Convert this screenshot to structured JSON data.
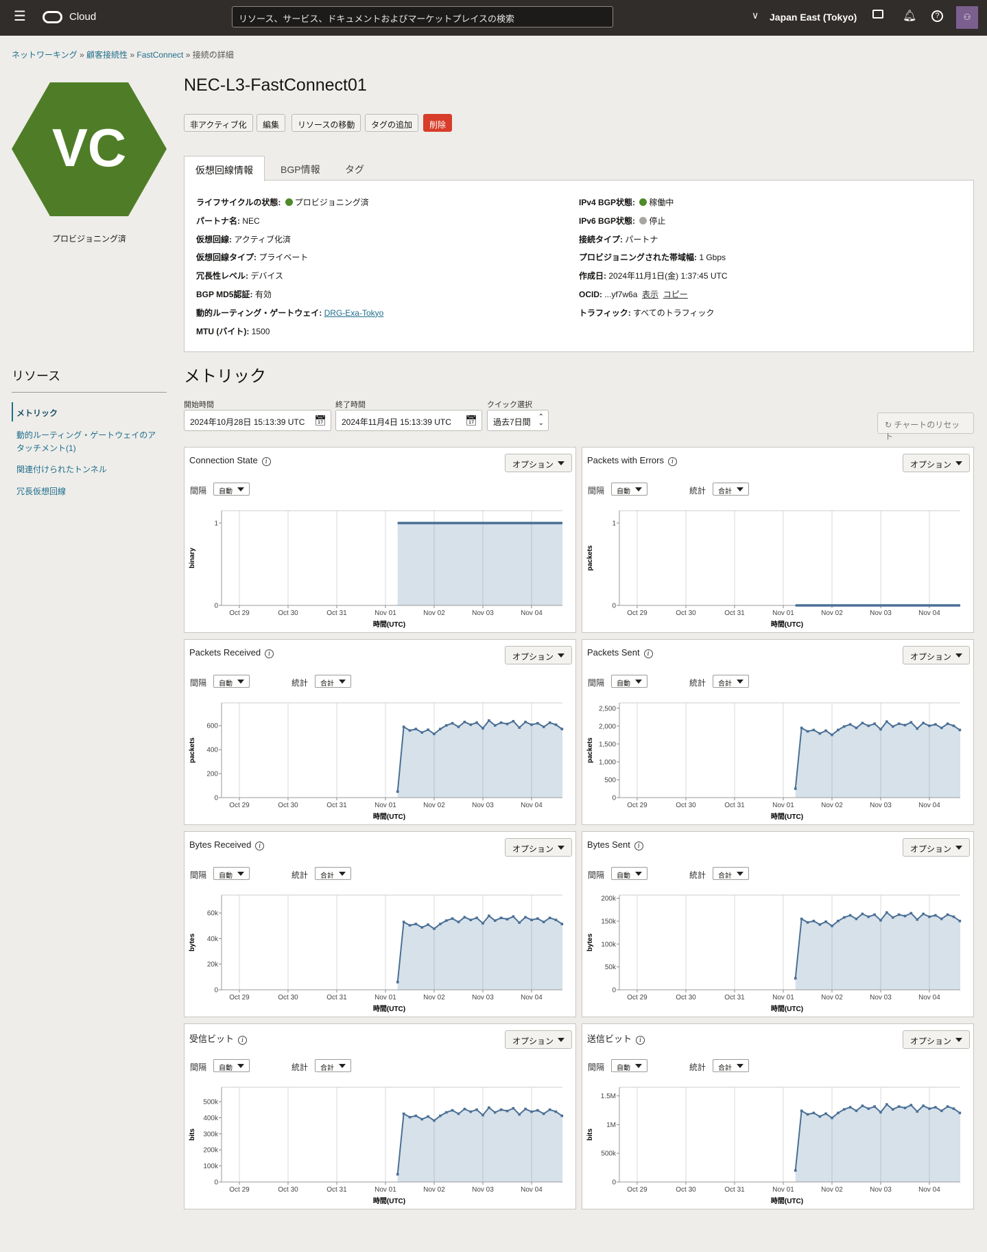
{
  "header": {
    "app": "Cloud",
    "search_placeholder": "リソース、サービス、ドキュメントおよびマーケットプレイスの検索",
    "region": "Japan East (Tokyo)",
    "icons": [
      "menu-icon",
      "oracle-logo-icon",
      "chevron-down-icon",
      "cloud-shell-icon",
      "bell-icon",
      "help-icon",
      "user-avatar-icon"
    ]
  },
  "breadcrumb": [
    "ネットワーキング",
    "顧客接続性",
    "FastConnect",
    "接続の詳細"
  ],
  "resource": {
    "icon_text": "VC",
    "status": "プロビジョニング済",
    "title": "NEC-L3-FastConnect01",
    "icon_color": "#4f7d27"
  },
  "actions": [
    "非アクティブ化",
    "編集",
    "リソースの移動",
    "タグの追加",
    "削除"
  ],
  "tabs": [
    "仮想回線情報",
    "BGP情報",
    "タグ"
  ],
  "info_left": [
    {
      "label": "ライフサイクルの状態:",
      "value": "プロビジョニング済",
      "dot": "#4f8a2b"
    },
    {
      "label": "パートナ名:",
      "value": "NEC"
    },
    {
      "label": "仮想回線:",
      "value": "アクティブ化済"
    },
    {
      "label": "仮想回線タイプ:",
      "value": "プライベート"
    },
    {
      "label": "冗長性レベル:",
      "value": "デバイス"
    },
    {
      "label": "BGP MD5認証:",
      "value": "有効"
    },
    {
      "label": "動的ルーティング・ゲートウェイ:",
      "value": "DRG-Exa-Tokyo",
      "link": true
    },
    {
      "label": "MTU (バイト):",
      "value": "1500"
    }
  ],
  "info_right": [
    {
      "label": "IPv4 BGP状態:",
      "value": "稼働中",
      "dot": "#4f8a2b"
    },
    {
      "label": "IPv6 BGP状態:",
      "value": "停止",
      "dot": "#a8a6a2"
    },
    {
      "label": "接続タイプ:",
      "value": "パートナ"
    },
    {
      "label": "プロビジョニングされた帯域幅:",
      "value": "1 Gbps"
    },
    {
      "label": "作成日:",
      "value": "2024年11月1日(金) 1:37:45 UTC"
    },
    {
      "label": "OCID:",
      "value": "...yf7w6a",
      "links": [
        "表示",
        "コピー"
      ]
    },
    {
      "label": "トラフィック:",
      "value": "すべてのトラフィック"
    }
  ],
  "sidebar": {
    "title": "リソース",
    "items": [
      "メトリック",
      "動的ルーティング・ゲートウェイのア",
      "タッチメント(1)",
      "関連付けられたトンネル",
      "冗長仮想回線"
    ]
  },
  "metrics": {
    "title": "メトリック",
    "start_label": "開始時間",
    "start": "2024年10月28日 15:13:39 UTC",
    "end_label": "終了時間",
    "end": "2024年11月4日 15:13:39 UTC",
    "quick_label": "クイック選択",
    "quick": "過去7日間",
    "reset": "チャートのリセット",
    "options": "オプション",
    "interval_label": "間隔",
    "interval": "自動",
    "stat_label": "統計",
    "stat": "合計"
  },
  "chart_data": [
    {
      "type": "area",
      "title": "Connection State",
      "ylabel": "binary",
      "xlabel": "時間(UTC)",
      "yticks": [
        0,
        1
      ],
      "ylim": [
        0,
        1.15
      ],
      "stat": false,
      "xlim": [
        "2024-10-28 15:13",
        "2024-11-04 15:13"
      ],
      "xticks": [
        "Oct 29",
        "Oct 30",
        "Oct 31",
        "Nov 01",
        "Nov 02",
        "Nov 03",
        "Nov 04"
      ],
      "x_start": "2024-11-01 06:00",
      "interval": "3h",
      "values": [
        1,
        1,
        1,
        1,
        1,
        1,
        1,
        1,
        1,
        1,
        1,
        1,
        1,
        1,
        1,
        1,
        1,
        1,
        1,
        1,
        1,
        1,
        1,
        1,
        1,
        1,
        1,
        1
      ],
      "markers": false
    },
    {
      "type": "area",
      "title": "Packets with Errors",
      "ylabel": "packets",
      "xlabel": "時間(UTC)",
      "yticks": [
        0,
        1
      ],
      "ylim": [
        0,
        1.15
      ],
      "stat": true,
      "xlim": [
        "2024-10-28 15:13",
        "2024-11-04 15:13"
      ],
      "xticks": [
        "Oct 29",
        "Oct 30",
        "Oct 31",
        "Nov 01",
        "Nov 02",
        "Nov 03",
        "Nov 04"
      ],
      "x_start": "2024-11-01 06:00",
      "interval": "3h",
      "values": [
        0,
        0,
        0,
        0,
        0,
        0,
        0,
        0,
        0,
        0,
        0,
        0,
        0,
        0,
        0,
        0,
        0,
        0,
        0,
        0,
        0,
        0,
        0,
        0,
        0,
        0,
        0,
        0
      ],
      "markers": false
    },
    {
      "type": "area",
      "title": "Packets Received",
      "ylabel": "packets",
      "xlabel": "時間(UTC)",
      "yticks": [
        0,
        200,
        400,
        600
      ],
      "ytick_labels": [
        "0",
        "200",
        "400",
        "600"
      ],
      "ylim": [
        0,
        790
      ],
      "stat": true,
      "xlim": [
        "2024-10-28 15:13",
        "2024-11-04 15:13"
      ],
      "xticks": [
        "Oct 29",
        "Oct 30",
        "Oct 31",
        "Nov 01",
        "Nov 02",
        "Nov 03",
        "Nov 04"
      ],
      "x_start": "2024-11-01 06:00",
      "interval": "3h",
      "values": [
        50,
        590,
        560,
        572,
        543,
        566,
        531,
        572,
        602,
        620,
        590,
        631,
        608,
        625,
        578,
        643,
        602,
        625,
        614,
        637,
        584,
        631,
        608,
        620,
        590,
        625,
        608,
        572
      ],
      "markers": true
    },
    {
      "type": "area",
      "title": "Packets Sent",
      "ylabel": "packets",
      "xlabel": "時間(UTC)",
      "yticks": [
        0,
        500,
        1000,
        1500,
        2000,
        2500
      ],
      "ytick_labels": [
        "0",
        "500",
        "1,000",
        "1,500",
        "2,000",
        "2,500"
      ],
      "ylim": [
        0,
        2650
      ],
      "stat": true,
      "xlim": [
        "2024-10-28 15:13",
        "2024-11-04 15:13"
      ],
      "xticks": [
        "Oct 29",
        "Oct 30",
        "Oct 31",
        "Nov 01",
        "Nov 02",
        "Nov 03",
        "Nov 04"
      ],
      "x_start": "2024-11-01 06:00",
      "interval": "3h",
      "values": [
        250,
        1950,
        1853,
        1892,
        1794,
        1872,
        1755,
        1892,
        1989,
        2048,
        1950,
        2087,
        2009,
        2067,
        1911,
        2126,
        1989,
        2067,
        2028,
        2106,
        1931,
        2087,
        2009,
        2048,
        1950,
        2067,
        2009,
        1892
      ],
      "markers": true
    },
    {
      "type": "area",
      "title": "Bytes Received",
      "ylabel": "bytes",
      "xlabel": "時間(UTC)",
      "yticks": [
        0,
        20000,
        40000,
        60000
      ],
      "ytick_labels": [
        "0",
        "20k",
        "40k",
        "60k"
      ],
      "ylim": [
        0,
        74000
      ],
      "stat": true,
      "xlim": [
        "2024-10-28 15:13",
        "2024-11-04 15:13"
      ],
      "xticks": [
        "Oct 29",
        "Oct 30",
        "Oct 31",
        "Nov 01",
        "Nov 02",
        "Nov 03",
        "Nov 04"
      ],
      "x_start": "2024-11-01 06:00",
      "interval": "3h",
      "values": [
        6000,
        53000,
        50350,
        51410,
        48760,
        50880,
        47700,
        51410,
        54060,
        55650,
        53000,
        56710,
        54590,
        56180,
        51940,
        57770,
        54060,
        56180,
        55120,
        57240,
        52470,
        56710,
        54590,
        55650,
        53000,
        56180,
        54590,
        51410
      ],
      "markers": true
    },
    {
      "type": "area",
      "title": "Bytes Sent",
      "ylabel": "bytes",
      "xlabel": "時間(UTC)",
      "yticks": [
        0,
        50000,
        100000,
        150000,
        200000
      ],
      "ytick_labels": [
        "0",
        "50k",
        "100k",
        "150k",
        "200k"
      ],
      "ylim": [
        0,
        207000
      ],
      "stat": true,
      "xlim": [
        "2024-10-28 15:13",
        "2024-11-04 15:13"
      ],
      "xticks": [
        "Oct 29",
        "Oct 30",
        "Oct 31",
        "Nov 01",
        "Nov 02",
        "Nov 03",
        "Nov 04"
      ],
      "x_start": "2024-11-01 06:00",
      "interval": "3h",
      "values": [
        25000,
        155000,
        147250,
        150350,
        142600,
        148800,
        139500,
        150350,
        158100,
        162750,
        155000,
        165850,
        159650,
        164300,
        151900,
        168950,
        158100,
        164300,
        161200,
        167400,
        153450,
        165850,
        159650,
        162750,
        155000,
        164300,
        159650,
        150350
      ],
      "markers": true
    },
    {
      "type": "area",
      "title": "受信ビット",
      "ylabel": "bits",
      "xlabel": "時間(UTC)",
      "yticks": [
        0,
        100000,
        200000,
        300000,
        400000,
        500000
      ],
      "ytick_labels": [
        "0",
        "100k",
        "200k",
        "300k",
        "400k",
        "500k"
      ],
      "ylim": [
        0,
        590000
      ],
      "stat": true,
      "xlim": [
        "2024-10-28 15:13",
        "2024-11-04 15:13"
      ],
      "xticks": [
        "Oct 29",
        "Oct 30",
        "Oct 31",
        "Nov 01",
        "Nov 02",
        "Nov 03",
        "Nov 04"
      ],
      "x_start": "2024-11-01 06:00",
      "interval": "3h",
      "values": [
        48000,
        425000,
        403750,
        412250,
        391000,
        408000,
        382500,
        412250,
        433500,
        446250,
        425000,
        454750,
        437750,
        450500,
        416500,
        463250,
        433500,
        450500,
        442000,
        459000,
        420750,
        454750,
        437750,
        446250,
        425000,
        450500,
        437750,
        412250
      ],
      "markers": true
    },
    {
      "type": "area",
      "title": "送信ビット",
      "ylabel": "bits",
      "xlabel": "時間(UTC)",
      "yticks": [
        0,
        500000,
        1000000,
        1500000
      ],
      "ytick_labels": [
        "0",
        "500k",
        "1M",
        "1.5M"
      ],
      "ylim": [
        0,
        1650000
      ],
      "stat": true,
      "xlim": [
        "2024-10-28 15:13",
        "2024-11-04 15:13"
      ],
      "xticks": [
        "Oct 29",
        "Oct 30",
        "Oct 31",
        "Nov 01",
        "Nov 02",
        "Nov 03",
        "Nov 04"
      ],
      "x_start": "2024-11-01 06:00",
      "interval": "3h",
      "values": [
        200000,
        1240000,
        1178000,
        1202800,
        1140800,
        1190400,
        1116000,
        1202800,
        1264800,
        1302000,
        1240000,
        1326800,
        1277200,
        1314400,
        1215200,
        1351600,
        1264800,
        1314400,
        1289600,
        1339200,
        1227600,
        1326800,
        1277200,
        1302000,
        1240000,
        1314400,
        1277200,
        1202800
      ],
      "markers": true
    }
  ],
  "colors": {
    "line": "#4a6f95",
    "fill": "#d6e1ea",
    "danger": "#d73d2a",
    "header": "#312d2a"
  }
}
